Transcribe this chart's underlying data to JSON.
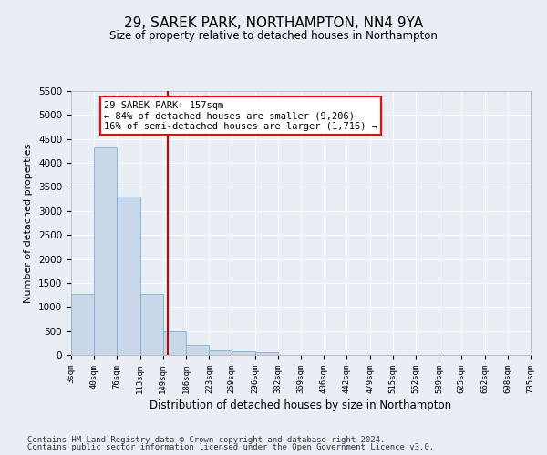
{
  "title": "29, SAREK PARK, NORTHAMPTON, NN4 9YA",
  "subtitle": "Size of property relative to detached houses in Northampton",
  "xlabel": "Distribution of detached houses by size in Northampton",
  "ylabel": "Number of detached properties",
  "footer_line1": "Contains HM Land Registry data © Crown copyright and database right 2024.",
  "footer_line2": "Contains public sector information licensed under the Open Government Licence v3.0.",
  "annotation_line1": "29 SAREK PARK: 157sqm",
  "annotation_line2": "← 84% of detached houses are smaller (9,206)",
  "annotation_line3": "16% of semi-detached houses are larger (1,716) →",
  "property_size": 157,
  "bin_edges": [
    3,
    40,
    76,
    113,
    149,
    186,
    223,
    259,
    296,
    332,
    369,
    406,
    442,
    479,
    515,
    552,
    589,
    625,
    662,
    698,
    735
  ],
  "bin_values": [
    1270,
    4320,
    3300,
    1280,
    490,
    215,
    95,
    70,
    65,
    0,
    0,
    0,
    0,
    0,
    0,
    0,
    0,
    0,
    0,
    0
  ],
  "bar_color": "#c8d8e8",
  "bar_edge_color": "#7ab0d4",
  "red_line_color": "#cc0000",
  "bg_color": "#e8eef4",
  "grid_color": "#ffffff",
  "ylim": [
    0,
    5500
  ],
  "yticks": [
    0,
    500,
    1000,
    1500,
    2000,
    2500,
    3000,
    3500,
    4000,
    4500,
    5000,
    5500
  ]
}
